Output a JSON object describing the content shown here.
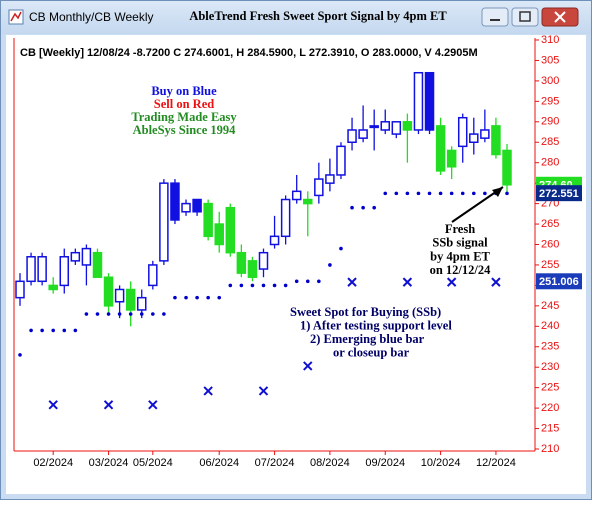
{
  "window": {
    "caption": "CB Monthly/CB Weekly"
  },
  "chart_data": {
    "type": "candlestick",
    "title": "AbleTrend Fresh Sweet Sport Signal by 4pm ET",
    "info": "CB [Weekly] 12/08/24 -8.7200 C 274.6001, H 284.5900, L 272.3910, O 283.0000, V 4.2905M",
    "categories": [
      null,
      null,
      null,
      "02/2024",
      null,
      null,
      null,
      null,
      "03/2024",
      null,
      null,
      null,
      "05/2024",
      null,
      null,
      null,
      null,
      null,
      "06/2024",
      null,
      null,
      null,
      null,
      "07/2024",
      null,
      null,
      null,
      null,
      "08/2024",
      null,
      null,
      null,
      null,
      "09/2024",
      null,
      null,
      null,
      null,
      "10/2024",
      null,
      null,
      null,
      null,
      "12/2024",
      null
    ],
    "open": [
      247,
      251,
      251,
      250,
      250,
      256,
      255,
      258,
      252,
      246,
      249,
      244,
      250,
      256,
      275,
      268,
      271,
      270,
      265,
      269,
      258,
      256,
      254,
      260,
      262,
      271,
      271,
      272,
      275,
      277,
      285,
      286,
      289,
      288,
      287,
      290,
      288,
      302,
      289,
      283,
      284,
      285,
      286,
      289,
      283
    ],
    "high": [
      253,
      258,
      258,
      252,
      259,
      259,
      260,
      259,
      253,
      250,
      251,
      249,
      256,
      276,
      276,
      271,
      271,
      271,
      268,
      270,
      260,
      257,
      259,
      267,
      272,
      277,
      273,
      280,
      281,
      285,
      291,
      294,
      293,
      293,
      290,
      292,
      302,
      302,
      291,
      284,
      292,
      291,
      293,
      291,
      284.59
    ],
    "low": [
      245,
      250,
      250,
      248,
      248,
      255,
      250,
      252,
      243,
      242,
      240,
      242,
      249,
      255,
      265,
      267,
      267,
      261,
      258,
      257,
      252,
      251,
      252,
      259,
      260,
      270,
      262,
      270,
      273,
      276,
      283,
      285,
      283,
      287,
      286,
      280,
      287,
      287,
      277,
      276,
      280,
      282,
      285,
      281,
      272.391
    ],
    "close": [
      251,
      257,
      257,
      249,
      257,
      258,
      259,
      252,
      245,
      249,
      244,
      247,
      255,
      275,
      266,
      270,
      268,
      262,
      260,
      258,
      253,
      252,
      258,
      262,
      271,
      273,
      270,
      276,
      277,
      284,
      288,
      288,
      289,
      290,
      290,
      288,
      302,
      288,
      278,
      279,
      291,
      287,
      288,
      282,
      274.6001
    ],
    "colors": [
      "#1010e0",
      "#1010e0",
      "#1010e0",
      "#22dd22",
      "#1010e0",
      "#1010e0",
      "#1010e0",
      "#22dd22",
      "#22dd22",
      "#1010e0",
      "#22dd22",
      "#1010e0",
      "#1010e0",
      "#1010e0",
      "#1010e0",
      "#1010e0",
      "#1010e0",
      "#22dd22",
      "#22dd22",
      "#22dd22",
      "#22dd22",
      "#22dd22",
      "#1010e0",
      "#1010e0",
      "#1010e0",
      "#1010e0",
      "#22dd22",
      "#1010e0",
      "#1010e0",
      "#1010e0",
      "#1010e0",
      "#1010e0",
      "#1010e0",
      "#1010e0",
      "#1010e0",
      "#22dd22",
      "#1010e0",
      "#1010e0",
      "#22dd22",
      "#22dd22",
      "#1010e0",
      "#1010e0",
      "#1010e0",
      "#22dd22",
      "#22dd22"
    ],
    "stops": [
      233,
      239,
      239,
      239,
      239,
      239,
      243,
      243,
      243,
      243,
      243,
      243,
      243,
      243,
      247,
      247,
      247,
      247,
      247,
      250,
      250,
      250,
      250,
      250,
      250,
      251,
      251,
      251,
      255,
      259,
      269,
      269,
      269,
      272.5,
      272.5,
      272.5,
      272.5,
      272.5,
      272.5,
      272.5,
      272.5,
      272.5,
      272.5,
      272.5,
      272.5
    ],
    "stop_color": "#0000cc",
    "ssb": [
      null,
      null,
      null,
      220.8,
      null,
      null,
      null,
      null,
      220.8,
      null,
      null,
      null,
      220.8,
      null,
      null,
      null,
      null,
      224.2,
      null,
      null,
      null,
      null,
      224.2,
      null,
      null,
      null,
      230.3,
      null,
      null,
      null,
      250.8,
      null,
      null,
      null,
      null,
      250.8,
      null,
      null,
      null,
      250.8,
      null,
      null,
      null,
      250.8,
      null
    ],
    "ssb_color": "#1010d0",
    "ylim": [
      210,
      310
    ],
    "yticks": [
      210,
      215,
      220,
      225,
      230,
      235,
      240,
      245,
      250,
      255,
      260,
      265,
      270,
      275,
      280,
      285,
      290,
      295,
      300,
      305,
      310
    ],
    "axis_color": "#ee1111",
    "price_tags": [
      {
        "value": 274.6,
        "label": "274.60",
        "color": "#22dd22"
      },
      {
        "value": 272.551,
        "color": "#0a2a8a"
      },
      {
        "value": 251.006,
        "color": "#1a3cbb"
      }
    ],
    "legend_text": [
      {
        "text": "Buy on Blue",
        "color": "#1010dd"
      },
      {
        "text": "Sell on Red",
        "color": "#ee1111"
      },
      {
        "text": "Trading Made Easy",
        "color": "#228b22"
      },
      {
        "text": "AbleSys Since 1994",
        "color": "#228b22"
      }
    ],
    "ssb_note": {
      "color": "#000066",
      "lines": [
        "Sweet Spot for Buying (SSb)",
        "1) After testing support level",
        "2) Emerging blue bar",
        "or closeup bar"
      ]
    },
    "fresh_note": {
      "color": "#000000",
      "lines": [
        "Fresh",
        "SSb signal",
        "by 4pm ET",
        "on 12/12/24"
      ]
    }
  }
}
